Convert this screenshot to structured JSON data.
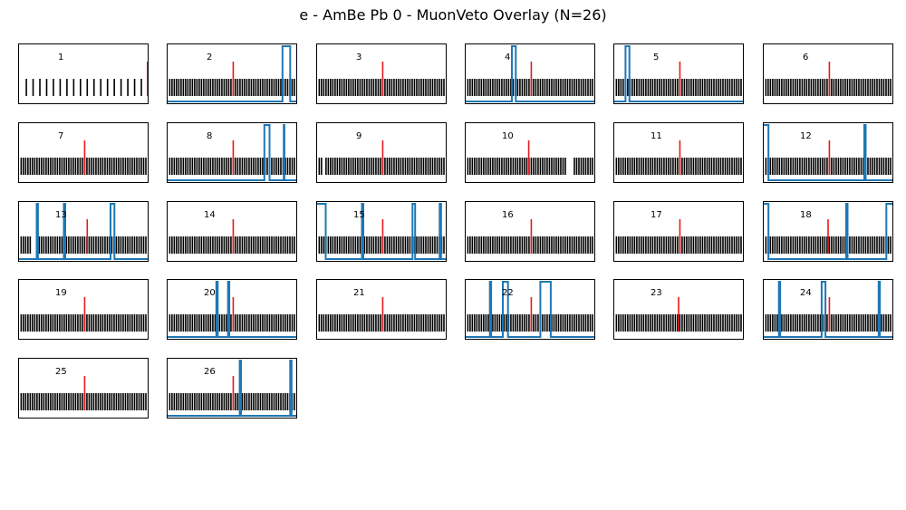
{
  "title": "e - AmBe Pb 0 - MuonVeto Overlay (N=26)",
  "colors": {
    "ticks": "#000000",
    "marker": "#e41a1c",
    "veto": "#1f77b4",
    "frame": "#000000"
  },
  "chart_data": {
    "type": "line",
    "n_panels": 26,
    "columns": 6,
    "x_range": [
      0,
      1
    ],
    "y_range": [
      0,
      1
    ],
    "panels": [
      {
        "label": "1",
        "tick_count": 18,
        "tick_start": 0.06,
        "tick_gaps": [],
        "marker": 0.995,
        "veto": []
      },
      {
        "label": "2",
        "tick_count": 56,
        "tick_start": 0.02,
        "tick_gaps": [],
        "marker": 0.51,
        "veto": [
          [
            0.89,
            0.95
          ]
        ]
      },
      {
        "label": "3",
        "tick_count": 56,
        "tick_start": 0.02,
        "tick_gaps": [],
        "marker": 0.51,
        "veto": []
      },
      {
        "label": "4",
        "tick_count": 56,
        "tick_start": 0.02,
        "tick_gaps": [],
        "marker": 0.51,
        "veto": [
          [
            0.36,
            0.39
          ]
        ]
      },
      {
        "label": "5",
        "tick_count": 56,
        "tick_start": 0.02,
        "tick_gaps": [],
        "marker": 0.51,
        "veto": [
          [
            0.09,
            0.12
          ]
        ]
      },
      {
        "label": "6",
        "tick_count": 56,
        "tick_start": 0.02,
        "tick_gaps": [],
        "marker": 0.51,
        "veto": []
      },
      {
        "label": "7",
        "tick_count": 56,
        "tick_start": 0.02,
        "tick_gaps": [],
        "marker": 0.51,
        "veto": []
      },
      {
        "label": "8",
        "tick_count": 56,
        "tick_start": 0.02,
        "tick_gaps": [],
        "marker": 0.51,
        "veto": [
          [
            0.75,
            0.79
          ],
          [
            0.9,
            0.905
          ]
        ]
      },
      {
        "label": "9",
        "tick_count": 56,
        "tick_start": 0.02,
        "tick_gaps": [
          [
            0.04,
            0.07
          ]
        ],
        "marker": 0.51,
        "veto": []
      },
      {
        "label": "10",
        "tick_count": 56,
        "tick_start": 0.02,
        "tick_gaps": [
          [
            0.78,
            0.84
          ]
        ],
        "marker": 0.49,
        "veto": []
      },
      {
        "label": "11",
        "tick_count": 56,
        "tick_start": 0.02,
        "tick_gaps": [],
        "marker": 0.51,
        "veto": []
      },
      {
        "label": "12",
        "tick_count": 56,
        "tick_start": 0.02,
        "tick_gaps": [],
        "marker": 0.51,
        "veto": [
          [
            0.0,
            0.04
          ],
          [
            0.78,
            0.79
          ]
        ]
      },
      {
        "label": "13",
        "tick_count": 56,
        "tick_start": 0.02,
        "tick_gaps": [
          [
            0.1,
            0.14
          ]
        ],
        "marker": 0.53,
        "veto": [
          [
            0.14,
            0.15
          ],
          [
            0.35,
            0.36
          ],
          [
            0.71,
            0.74
          ]
        ]
      },
      {
        "label": "14",
        "tick_count": 56,
        "tick_start": 0.02,
        "tick_gaps": [],
        "marker": 0.51,
        "veto": []
      },
      {
        "label": "15",
        "tick_count": 56,
        "tick_start": 0.02,
        "tick_gaps": [],
        "marker": 0.51,
        "veto": [
          [
            0.0,
            0.07
          ],
          [
            0.35,
            0.36
          ],
          [
            0.74,
            0.76
          ],
          [
            0.95,
            0.96
          ]
        ]
      },
      {
        "label": "16",
        "tick_count": 56,
        "tick_start": 0.02,
        "tick_gaps": [],
        "marker": 0.51,
        "veto": []
      },
      {
        "label": "17",
        "tick_count": 56,
        "tick_start": 0.02,
        "tick_gaps": [],
        "marker": 0.51,
        "veto": []
      },
      {
        "label": "18",
        "tick_count": 56,
        "tick_start": 0.02,
        "tick_gaps": [],
        "marker": 0.5,
        "veto": [
          [
            0.0,
            0.04
          ],
          [
            0.64,
            0.65
          ],
          [
            0.95,
            1.0
          ]
        ]
      },
      {
        "label": "19",
        "tick_count": 56,
        "tick_start": 0.02,
        "tick_gaps": [],
        "marker": 0.51,
        "veto": []
      },
      {
        "label": "20",
        "tick_count": 56,
        "tick_start": 0.02,
        "tick_gaps": [],
        "marker": 0.51,
        "veto": [
          [
            0.38,
            0.39
          ],
          [
            0.47,
            0.48
          ]
        ]
      },
      {
        "label": "21",
        "tick_count": 56,
        "tick_start": 0.02,
        "tick_gaps": [],
        "marker": 0.51,
        "veto": []
      },
      {
        "label": "22",
        "tick_count": 56,
        "tick_start": 0.02,
        "tick_gaps": [],
        "marker": 0.51,
        "veto": [
          [
            0.19,
            0.2
          ],
          [
            0.29,
            0.33
          ],
          [
            0.58,
            0.66
          ]
        ]
      },
      {
        "label": "23",
        "tick_count": 56,
        "tick_start": 0.02,
        "tick_gaps": [],
        "marker": 0.5,
        "veto": []
      },
      {
        "label": "24",
        "tick_count": 56,
        "tick_start": 0.02,
        "tick_gaps": [],
        "marker": 0.51,
        "veto": [
          [
            0.12,
            0.13
          ],
          [
            0.45,
            0.48
          ],
          [
            0.89,
            0.9
          ]
        ]
      },
      {
        "label": "25",
        "tick_count": 56,
        "tick_start": 0.02,
        "tick_gaps": [],
        "marker": 0.51,
        "veto": []
      },
      {
        "label": "26",
        "tick_count": 56,
        "tick_start": 0.02,
        "tick_gaps": [],
        "marker": 0.51,
        "veto": [
          [
            0.56,
            0.57
          ],
          [
            0.95,
            0.96
          ]
        ]
      }
    ]
  }
}
